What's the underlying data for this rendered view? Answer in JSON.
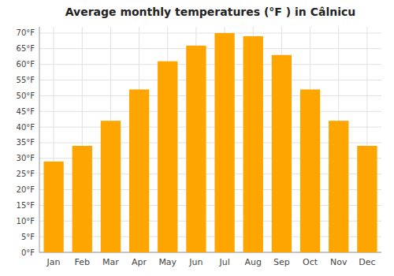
{
  "chart_data": {
    "type": "bar",
    "title": "Average monthly temperatures (°F ) in Câlnicu",
    "categories": [
      "Jan",
      "Feb",
      "Mar",
      "Apr",
      "May",
      "Jun",
      "Jul",
      "Aug",
      "Sep",
      "Oct",
      "Nov",
      "Dec"
    ],
    "values": [
      29.0,
      34.0,
      42.0,
      52.0,
      61.0,
      66.0,
      70.0,
      69.0,
      63.0,
      52.0,
      42.0,
      34.0
    ],
    "color": "#FFA500",
    "ylim": [
      0,
      72
    ],
    "yticks": [
      {
        "value": 0,
        "label": "0°F"
      },
      {
        "value": 5,
        "label": "5°F"
      },
      {
        "value": 10,
        "label": "10°F"
      },
      {
        "value": 15,
        "label": "15°F"
      },
      {
        "value": 20,
        "label": "20°F"
      },
      {
        "value": 25,
        "label": "25°F"
      },
      {
        "value": 30,
        "label": "30°F"
      },
      {
        "value": 35,
        "label": "35°F"
      },
      {
        "value": 40,
        "label": "40°F"
      },
      {
        "value": 45,
        "label": "45°F"
      },
      {
        "value": 50,
        "label": "50°F"
      },
      {
        "value": 55,
        "label": "55°F"
      },
      {
        "value": 60,
        "label": "60°F"
      },
      {
        "value": 65,
        "label": "65°F"
      },
      {
        "value": 70,
        "label": "70°F"
      }
    ],
    "grid": true
  }
}
